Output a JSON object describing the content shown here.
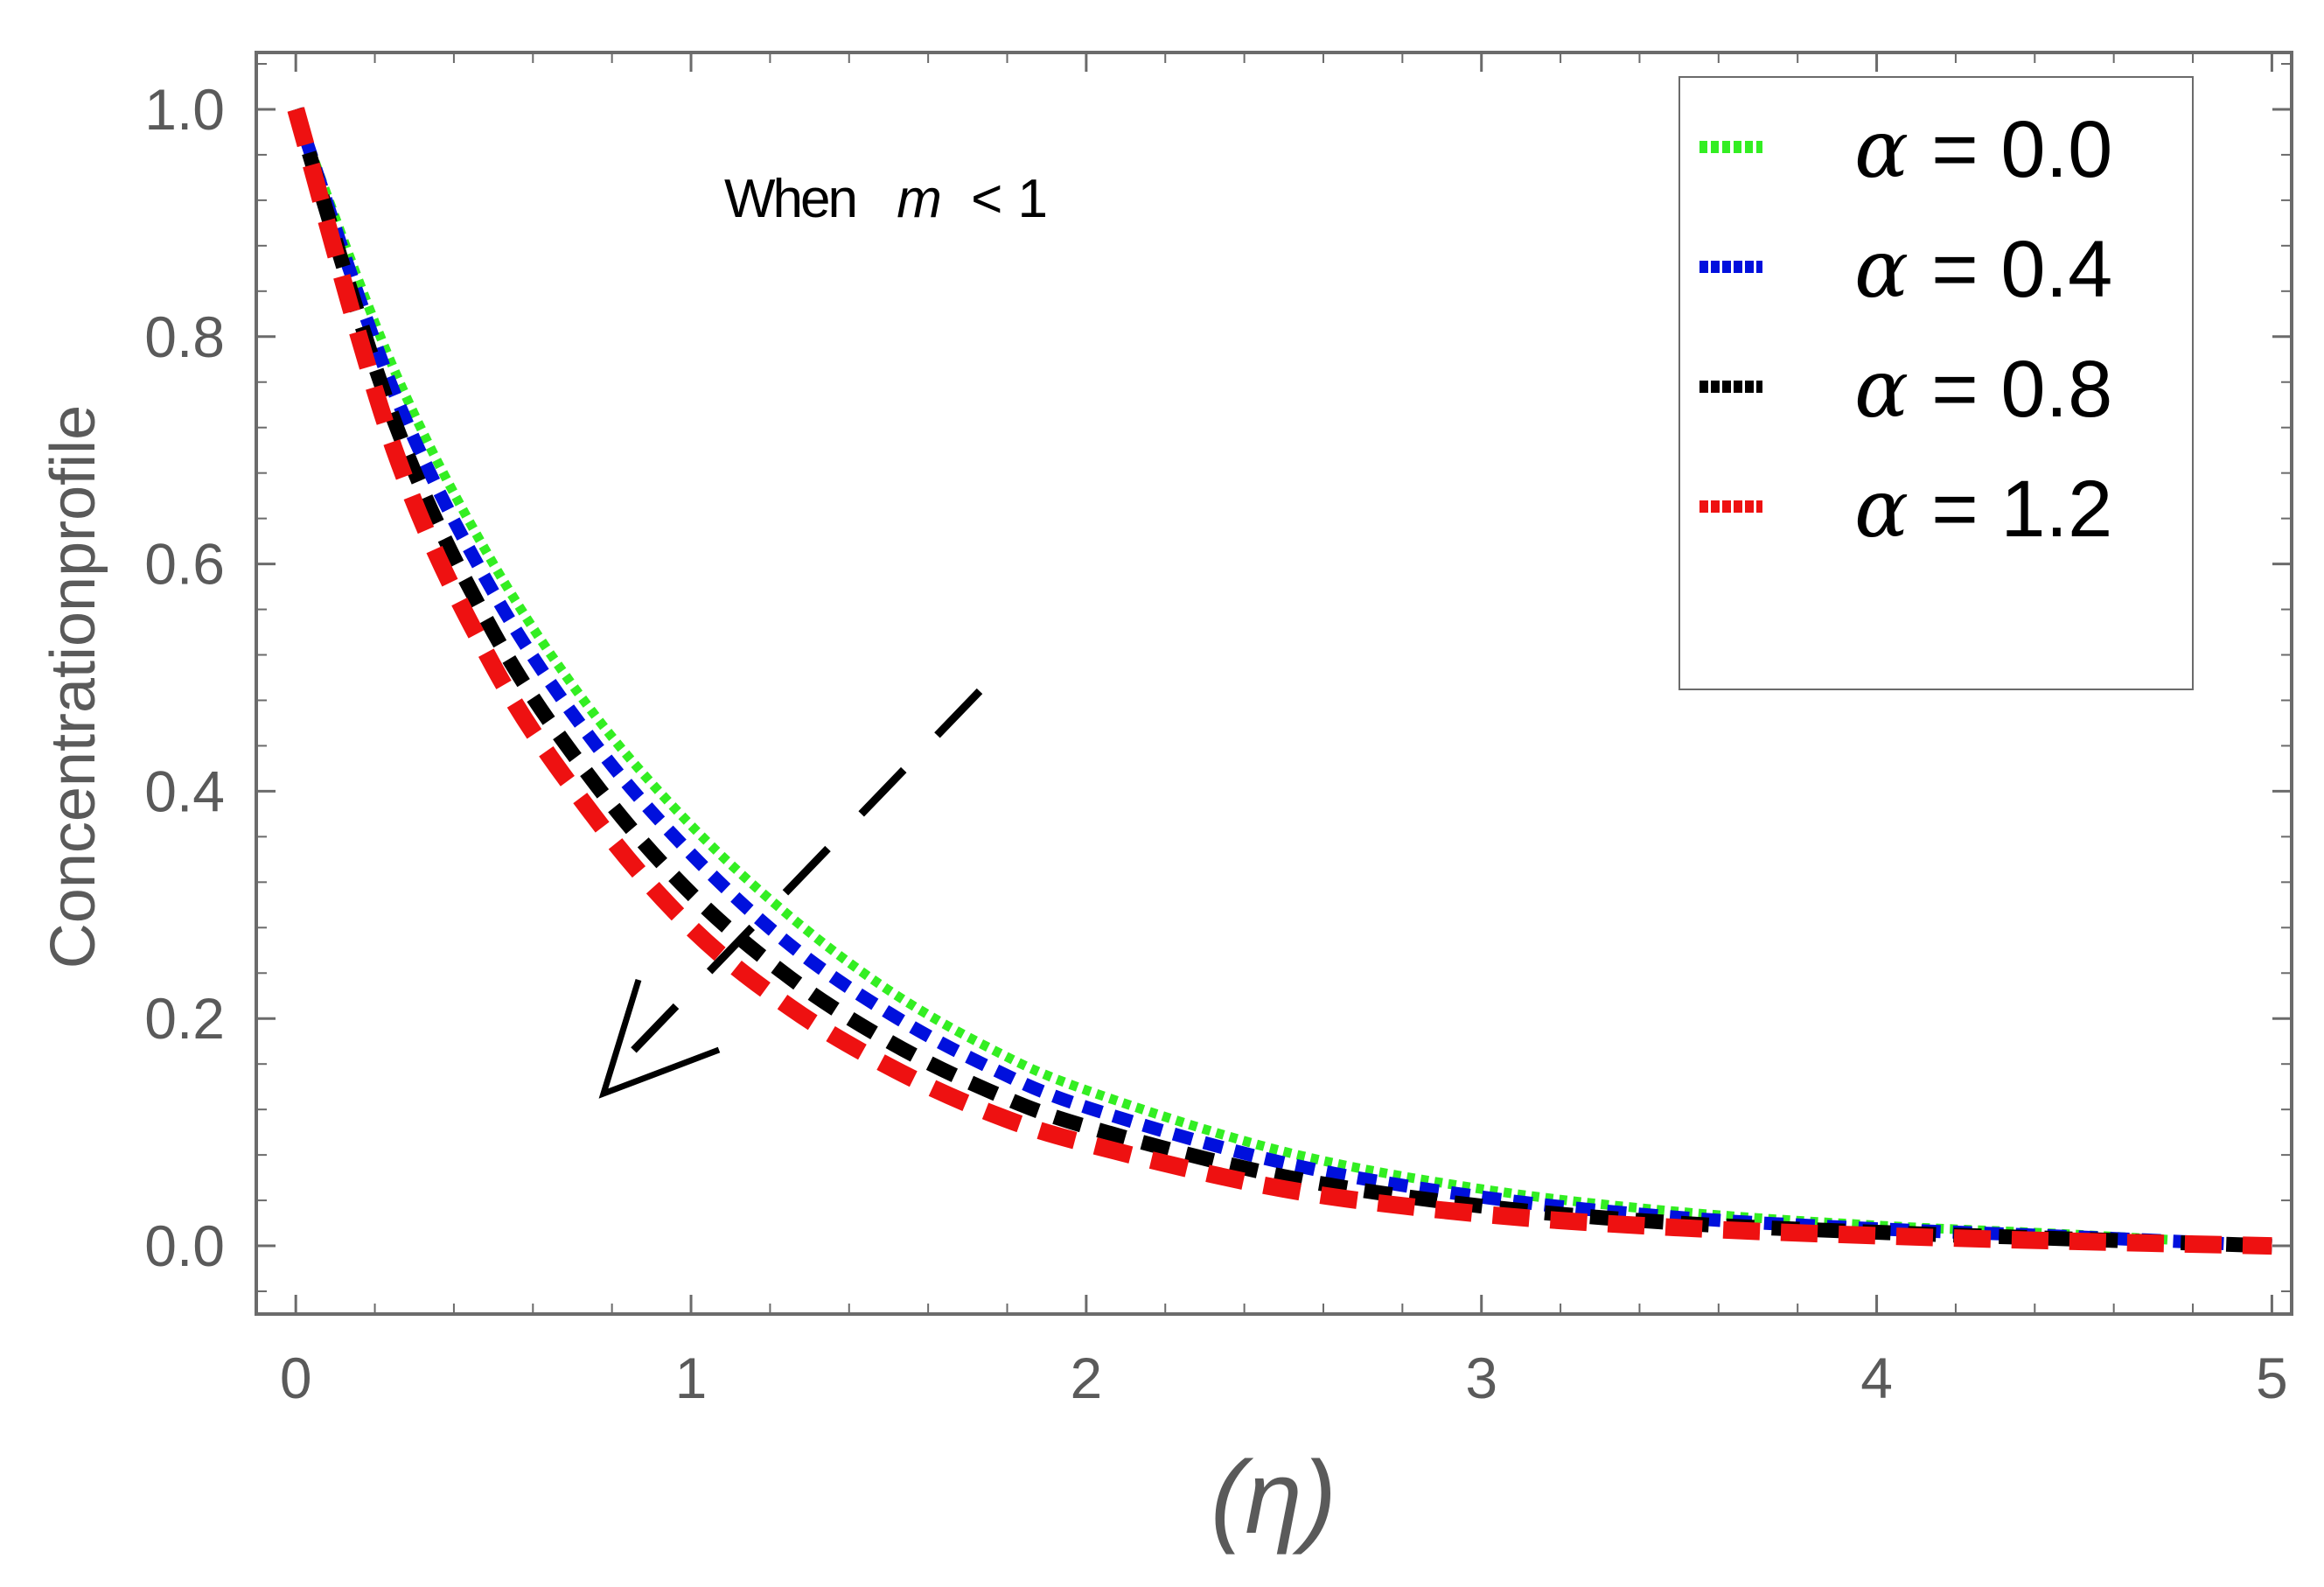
{
  "chart_data": {
    "type": "line",
    "title": "",
    "xlabel": "(η)",
    "ylabel": "Concentrationprofile",
    "xlim": [
      -0.1,
      5.05
    ],
    "ylim": [
      -0.06,
      1.05
    ],
    "x_ticks": [
      "0",
      "1",
      "2",
      "3",
      "4",
      "5"
    ],
    "y_ticks": [
      "0.0",
      "0.2",
      "0.4",
      "0.6",
      "0.8",
      "1.0"
    ],
    "grid": false,
    "legend_position": "top-right",
    "annotation": {
      "prefix": "When",
      "variable": "m",
      "relation": "< 1"
    },
    "arrow_meaning": "increasing α",
    "series": [
      {
        "name": "α = 0.0",
        "symbol": "α",
        "value_text": "= 0.0",
        "color": "#33ee22",
        "x": [
          0,
          0.25,
          0.5,
          0.75,
          1.0,
          1.25,
          1.5,
          1.75,
          2.0,
          2.5,
          3.0,
          3.5,
          4.0,
          4.5,
          5.0
        ],
        "values": [
          1.0,
          0.77,
          0.6,
          0.47,
          0.37,
          0.29,
          0.225,
          0.175,
          0.137,
          0.083,
          0.05,
          0.03,
          0.018,
          0.01,
          0.0
        ]
      },
      {
        "name": "α = 0.4",
        "symbol": "α",
        "value_text": "= 0.4",
        "color": "#0010dd",
        "x": [
          0,
          0.25,
          0.5,
          0.75,
          1.0,
          1.25,
          1.5,
          1.75,
          2.0,
          2.5,
          3.0,
          3.5,
          4.0,
          4.5,
          5.0
        ],
        "values": [
          1.0,
          0.75,
          0.575,
          0.445,
          0.345,
          0.265,
          0.205,
          0.158,
          0.122,
          0.073,
          0.043,
          0.025,
          0.015,
          0.008,
          0.0
        ]
      },
      {
        "name": "α = 0.8",
        "symbol": "α",
        "value_text": "= 0.8",
        "color": "#000000",
        "x": [
          0,
          0.25,
          0.5,
          0.75,
          1.0,
          1.25,
          1.5,
          1.75,
          2.0,
          2.5,
          3.0,
          3.5,
          4.0,
          4.5,
          5.0
        ],
        "values": [
          1.0,
          0.725,
          0.54,
          0.41,
          0.31,
          0.236,
          0.18,
          0.137,
          0.105,
          0.061,
          0.035,
          0.02,
          0.012,
          0.006,
          0.0
        ]
      },
      {
        "name": "α = 1.2",
        "symbol": "α",
        "value_text": "= 1.2",
        "color": "#ee1111",
        "x": [
          0,
          0.25,
          0.5,
          0.75,
          1.0,
          1.25,
          1.5,
          1.75,
          2.0,
          2.5,
          3.0,
          3.5,
          4.0,
          4.5,
          5.0
        ],
        "values": [
          1.0,
          0.7,
          0.51,
          0.38,
          0.28,
          0.21,
          0.158,
          0.118,
          0.09,
          0.05,
          0.028,
          0.016,
          0.009,
          0.004,
          0.0
        ]
      }
    ]
  }
}
